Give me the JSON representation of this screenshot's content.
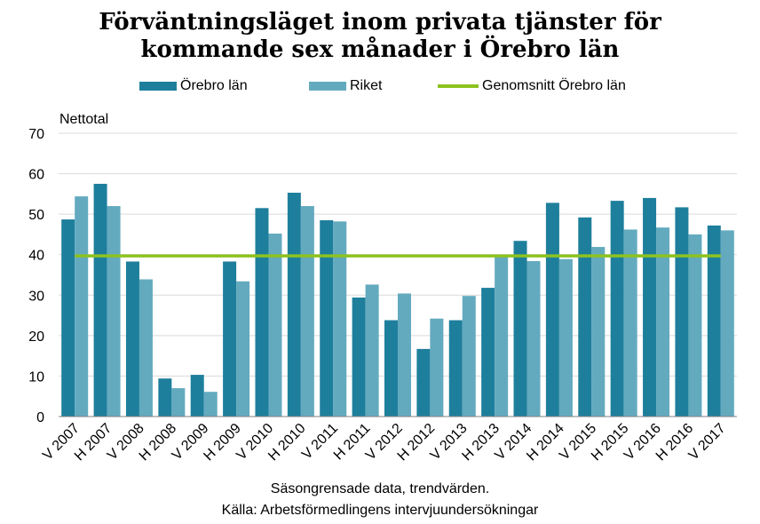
{
  "chart_data": {
    "type": "bar",
    "title": "Förväntningsläget inom privata tjänster för kommande sex månader i Örebro län",
    "title_lines": [
      "Förväntningsläget inom privata tjänster för",
      "kommande sex månader i Örebro län"
    ],
    "ylabel": "Nettotal",
    "xlabel": "",
    "ylim": [
      0,
      70
    ],
    "yticks": [
      0,
      10,
      20,
      30,
      40,
      50,
      60,
      70
    ],
    "grid": true,
    "legend_position": "top",
    "categories": [
      "V 2007",
      "H 2007",
      "V 2008",
      "H 2008",
      "V 2009",
      "H 2009",
      "V 2010",
      "H 2010",
      "V 2011",
      "H 2011",
      "V 2012",
      "H 2012",
      "V 2013",
      "H 2013",
      "V 2014",
      "H 2014",
      "V 2015",
      "H 2015",
      "V 2016",
      "H 2016",
      "V 2017"
    ],
    "series": [
      {
        "name": "Örebro län",
        "type": "bar",
        "color": "#1e7f9c",
        "values": [
          48.7,
          57.5,
          38.3,
          9.4,
          10.3,
          38.3,
          51.5,
          55.3,
          48.5,
          29.4,
          23.8,
          16.7,
          23.8,
          31.8,
          43.4,
          52.8,
          49.2,
          53.3,
          54.0,
          51.7,
          47.2
        ]
      },
      {
        "name": "Riket",
        "type": "bar",
        "color": "#63aabf",
        "values": [
          54.4,
          52.0,
          33.9,
          7.0,
          6.1,
          33.4,
          45.2,
          52.0,
          48.2,
          32.6,
          30.4,
          24.2,
          29.8,
          39.6,
          38.4,
          38.9,
          41.9,
          46.2,
          46.7,
          45.0,
          46.0
        ]
      },
      {
        "name": "Genomsnitt Örebro län",
        "type": "line",
        "color": "#8dc21f",
        "values": [
          39.7,
          39.7,
          39.7,
          39.7,
          39.7,
          39.7,
          39.7,
          39.7,
          39.7,
          39.7,
          39.7,
          39.7,
          39.7,
          39.7,
          39.7,
          39.7,
          39.7,
          39.7,
          39.7,
          39.7,
          39.7
        ]
      }
    ],
    "notes": [
      "Säsongrensade data, trendvärden.",
      "Källa: Arbetsförmedlingens  intervjuundersökningar"
    ]
  },
  "colors": {
    "grid": "#d9d9d9",
    "axis": "#808080"
  }
}
